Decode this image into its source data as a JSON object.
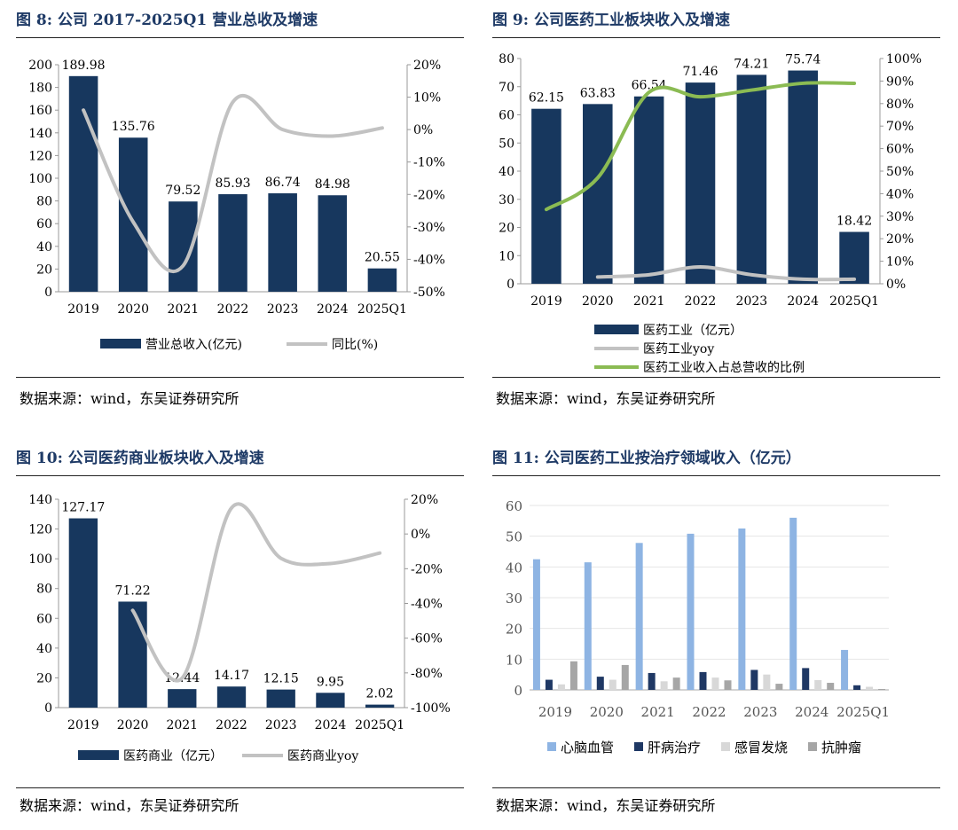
{
  "colors": {
    "navy": "#17375e",
    "gray": "#c2c2c2",
    "green": "#8bbb53",
    "lightblue": "#8eb4e3",
    "darkblue": "#1f3864",
    "lightgray": "#d8d8d8",
    "midgray": "#a6a6a6"
  },
  "panels": [
    {
      "title": "图 8:  公司 2017-2025Q1 营业总收及增速",
      "source": "数据来源：wind，东吴证券研究所"
    },
    {
      "title": "图 9:  公司医药工业板块收入及增速",
      "source": "数据来源：wind，东吴证券研究所"
    },
    {
      "title": "图 10:  公司医药商业板块收入及增速",
      "source": "数据来源：wind，东吴证券研究所"
    },
    {
      "title": "图 11:  公司医药工业按治疗领域收入（亿元）",
      "source": "数据来源：wind，东吴证券研究所"
    }
  ],
  "chart_data": [
    {
      "type": "bar+line",
      "categories": [
        "2019",
        "2020",
        "2021",
        "2022",
        "2023",
        "2024",
        "2025Q1"
      ],
      "bar_series": {
        "name": "营业总收入(亿元)",
        "values": [
          189.98,
          135.76,
          79.52,
          85.93,
          86.74,
          84.98,
          20.55
        ],
        "labels": [
          "189.98",
          "135.76",
          "79.52",
          "85.93",
          "86.74",
          "84.98",
          "20.55"
        ]
      },
      "line_series": [
        {
          "name": "同比(%)",
          "values": [
            6,
            -28.5,
            -42,
            8.5,
            0,
            -2,
            0.5
          ],
          "color": "gray"
        }
      ],
      "ylim": [
        0,
        200
      ],
      "yticks": [
        "0",
        "20",
        "40",
        "60",
        "80",
        "100",
        "120",
        "140",
        "160",
        "180",
        "200"
      ],
      "y2lim": [
        -50,
        20
      ],
      "y2ticks": [
        "-50%",
        "-40%",
        "-30%",
        "-20%",
        "-10%",
        "0%",
        "10%",
        "20%"
      ],
      "legend": [
        "营业总收入(亿元)",
        "同比(%)"
      ]
    },
    {
      "type": "bar+line",
      "categories": [
        "2019",
        "2020",
        "2021",
        "2022",
        "2023",
        "2024",
        "2025Q1"
      ],
      "bar_series": {
        "name": "医药工业（亿元）",
        "values": [
          62.15,
          63.83,
          66.54,
          71.46,
          74.21,
          75.74,
          18.42
        ],
        "labels": [
          "62.15",
          "63.83",
          "66.54",
          "71.46",
          "74.21",
          "75.74",
          "18.42"
        ]
      },
      "line_series": [
        {
          "name": "医药工业yoy",
          "values": [
            null,
            3,
            4,
            7.5,
            4,
            2,
            2
          ],
          "color": "gray"
        },
        {
          "name": "医药工业收入占总营收的比例",
          "values": [
            33,
            47,
            85,
            83,
            86,
            89,
            89
          ],
          "color": "green"
        }
      ],
      "ylim": [
        0,
        80
      ],
      "yticks": [
        "0",
        "10",
        "20",
        "30",
        "40",
        "50",
        "60",
        "70",
        "80"
      ],
      "y2lim": [
        0,
        100
      ],
      "y2ticks": [
        "0%",
        "10%",
        "20%",
        "30%",
        "40%",
        "50%",
        "60%",
        "70%",
        "80%",
        "90%",
        "100%"
      ],
      "legend": [
        "医药工业（亿元）",
        "医药工业yoy",
        "医药工业收入占总营收的比例"
      ]
    },
    {
      "type": "bar+line",
      "categories": [
        "2019",
        "2020",
        "2021",
        "2022",
        "2023",
        "2024",
        "2025Q1"
      ],
      "bar_series": {
        "name": "医药商业（亿元）",
        "values": [
          127.17,
          71.22,
          12.44,
          14.17,
          12.15,
          9.95,
          2.02
        ],
        "labels": [
          "127.17",
          "71.22",
          "12.44",
          "14.17",
          "12.15",
          "9.95",
          "2.02"
        ]
      },
      "line_series": [
        {
          "name": "医药商业yoy",
          "values": [
            null,
            -44,
            -83,
            15,
            -14,
            -17,
            -11
          ],
          "color": "gray"
        }
      ],
      "ylim": [
        0,
        140
      ],
      "yticks": [
        "0",
        "20",
        "40",
        "60",
        "80",
        "100",
        "120",
        "140"
      ],
      "y2lim": [
        -100,
        20
      ],
      "y2ticks": [
        "-100%",
        "-80%",
        "-60%",
        "-40%",
        "-20%",
        "0%",
        "20%"
      ],
      "legend": [
        "医药商业（亿元）",
        "医药商业yoy"
      ]
    },
    {
      "type": "bar",
      "categories": [
        "2019",
        "2020",
        "2021",
        "2022",
        "2023",
        "2024",
        "2025Q1"
      ],
      "series": [
        {
          "name": "心脑血管",
          "values": [
            42.5,
            41.5,
            47.8,
            50.8,
            52.5,
            56,
            13
          ],
          "color": "lightblue"
        },
        {
          "name": "肝病治疗",
          "values": [
            3.3,
            4.3,
            5.5,
            5.8,
            6.5,
            7.1,
            1.5
          ],
          "color": "darkblue"
        },
        {
          "name": "感冒发烧",
          "values": [
            1.8,
            3.3,
            2.8,
            4,
            5,
            3.2,
            1
          ],
          "color": "lightgray"
        },
        {
          "name": "抗肿瘤",
          "values": [
            9.3,
            8.1,
            4,
            3.1,
            2,
            2.3,
            0.3
          ],
          "color": "midgray"
        }
      ],
      "ylim": [
        0,
        60
      ],
      "yticks": [
        "0",
        "10",
        "20",
        "30",
        "40",
        "50",
        "60"
      ],
      "legend": [
        "心脑血管",
        "肝病治疗",
        "感冒发烧",
        "抗肿瘤"
      ]
    }
  ]
}
